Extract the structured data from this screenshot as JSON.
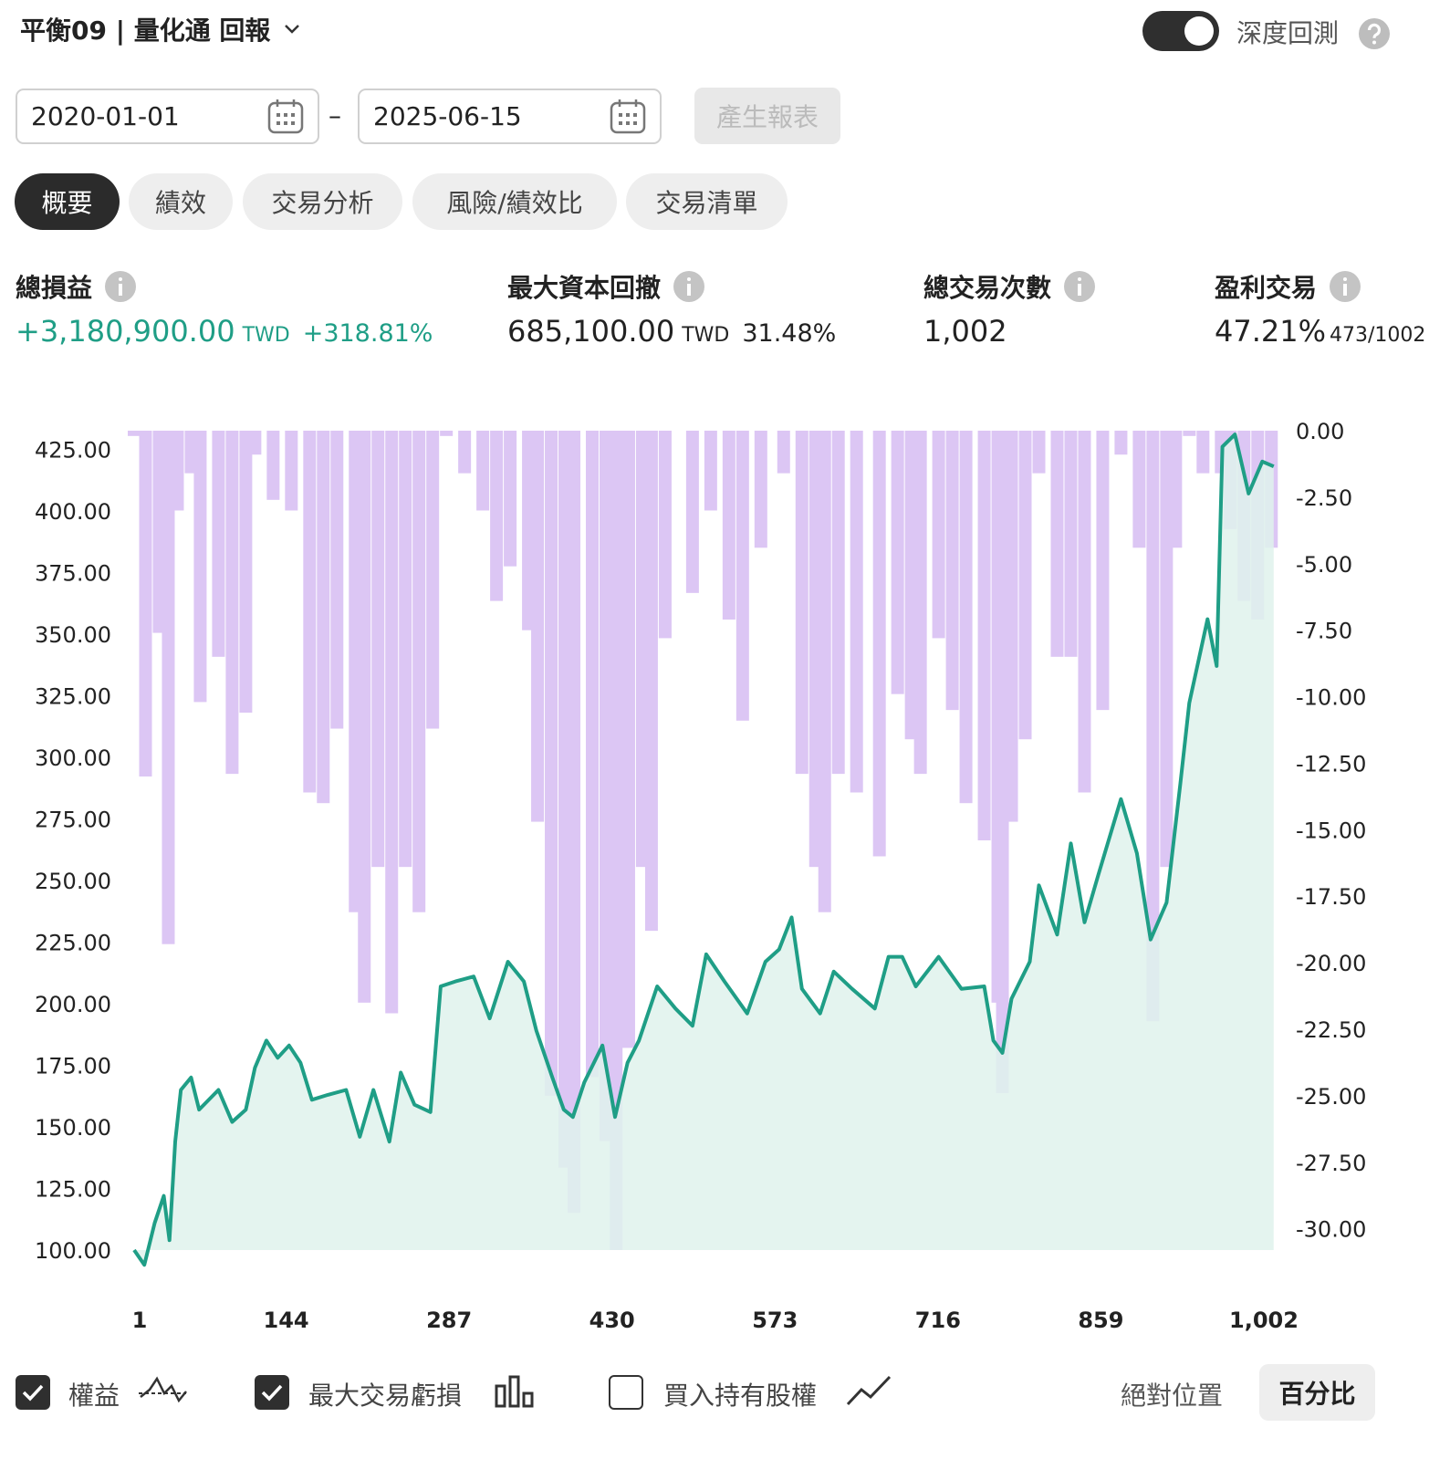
{
  "header": {
    "title": "平衡09 | 量化通 回報",
    "toggle_label": "深度回測"
  },
  "date_range": {
    "start": "2020-01-01",
    "separator": "–",
    "end": "2025-06-15",
    "button": "產生報表"
  },
  "tabs": [
    "概要",
    "績效",
    "交易分析",
    "風險/績效比",
    "交易清單"
  ],
  "stats": [
    {
      "label": "總損益",
      "value": "+3,180,900.00",
      "unit": "TWD",
      "extra": "+318.81%"
    },
    {
      "label": "最大資本回撤",
      "value": "685,100.00",
      "unit": "TWD",
      "extra": "31.48%"
    },
    {
      "label": "總交易次數",
      "value": "1,002"
    },
    {
      "label": "盈利交易",
      "value": "47.21%",
      "extra": "473/1002"
    }
  ],
  "controls": {
    "buy_hold": "買入持有股權",
    "absolute": "絕對位置",
    "percent": "百分比"
  },
  "chart_data": {
    "type": "line",
    "xlim": [
      1,
      1002
    ],
    "xticks": [
      1,
      144,
      287,
      430,
      573,
      716,
      859,
      {
        "value": 1002,
        "label": "1,002"
      }
    ],
    "ylim": [
      100,
      432.5
    ],
    "yticks": [
      {
        "value": 100,
        "label": "100.00"
      },
      {
        "value": 125,
        "label": "125.00"
      },
      {
        "value": 150,
        "label": "150.00"
      },
      {
        "value": 175,
        "label": "175.00"
      },
      {
        "value": 200,
        "label": "200.00"
      },
      {
        "value": 225,
        "label": "225.00"
      },
      {
        "value": 250,
        "label": "250.00"
      },
      {
        "value": 275,
        "label": "275.00"
      },
      {
        "value": 300,
        "label": "300.00"
      },
      {
        "value": 325,
        "label": "325.00"
      },
      {
        "value": 350,
        "label": "350.00"
      },
      {
        "value": 375,
        "label": "375.00"
      },
      {
        "value": 400,
        "label": "400.00"
      },
      {
        "value": 425,
        "label": "425.00"
      }
    ],
    "y2lim": [
      -30.8,
      0
    ],
    "y2ticks": [
      {
        "value": 0,
        "label": "0.00"
      },
      {
        "value": -2.5,
        "label": "-2.50"
      },
      {
        "value": -5,
        "label": "-5.00"
      },
      {
        "value": -7.5,
        "label": "-7.50"
      },
      {
        "value": -10,
        "label": "-10.00"
      },
      {
        "value": -12.5,
        "label": "-12.50"
      },
      {
        "value": -15,
        "label": "-15.00"
      },
      {
        "value": -17.5,
        "label": "-17.50"
      },
      {
        "value": -20,
        "label": "-20.00"
      },
      {
        "value": -22.5,
        "label": "-22.50"
      },
      {
        "value": -25,
        "label": "-25.00"
      },
      {
        "value": -27.5,
        "label": "-27.50"
      },
      {
        "value": -30,
        "label": "-30.00"
      }
    ],
    "series": [
      {
        "name": "最大交易虧損",
        "type": "bar",
        "axis": "y2",
        "color": "#dcc6f4",
        "x": [
          1,
          11,
          23,
          31,
          39,
          51,
          59,
          75,
          87,
          99,
          107,
          123,
          139,
          155,
          167,
          179,
          195,
          203,
          215,
          227,
          239,
          251,
          263,
          275,
          291,
          307,
          319,
          331,
          347,
          355,
          367,
          379,
          387,
          403,
          415,
          424,
          435,
          447,
          455,
          467,
          491,
          507,
          523,
          535,
          551,
          571,
          587,
          599,
          607,
          619,
          635,
          655,
          671,
          683,
          691,
          707,
          719,
          731,
          747,
          759,
          763,
          771,
          783,
          795,
          811,
          823,
          835,
          851,
          867,
          883,
          895,
          907,
          915,
          927,
          939,
          955,
          963,
          975,
          987,
          999
        ],
        "values": [
          -0.2,
          -13,
          -7.6,
          -19.3,
          -3,
          -1.6,
          -10.2,
          -8.5,
          -12.9,
          -10.6,
          -0.9,
          -2.6,
          -3,
          -13.6,
          -14,
          -11.2,
          -18.1,
          -21.5,
          -16.4,
          -21.9,
          -16.4,
          -18.1,
          -11.2,
          -0.2,
          -1.6,
          -3,
          -6.4,
          -5.1,
          -7.5,
          -14.7,
          -25,
          -27.7,
          -29.4,
          -24.3,
          -26.7,
          -30.8,
          -23.2,
          -16.4,
          -18.8,
          -7.8,
          -6.1,
          -3,
          -7.1,
          -10.9,
          -4.4,
          -1.6,
          -12.9,
          -16.4,
          -18.1,
          -12.9,
          -13.6,
          -16,
          -9.9,
          -11.6,
          -12.9,
          -7.8,
          -10.5,
          -14,
          -15.4,
          -21.5,
          -24.9,
          -14.7,
          -11.6,
          -1.6,
          -8.5,
          -8.5,
          -13.6,
          -10.5,
          -0.9,
          -4.4,
          -22.2,
          -16.4,
          -4.4,
          -0.2,
          -1.6,
          -1.6,
          -3.7,
          -6.4,
          -7.1,
          -4.4
        ]
      },
      {
        "name": "權益",
        "type": "line",
        "color": "#1f9e86",
        "fill": "#dff2ec",
        "x": [
          1,
          10,
          19,
          27,
          32,
          37,
          42,
          51,
          58,
          75,
          87,
          99,
          107,
          117,
          127,
          137,
          147,
          157,
          171,
          187,
          199,
          211,
          225,
          235,
          247,
          261,
          270,
          283,
          299,
          313,
          329,
          343,
          354,
          368,
          378,
          386,
          396,
          412,
          423,
          434,
          444,
          460,
          476,
          491,
          503,
          519,
          539,
          555,
          567,
          578,
          587,
          603,
          615,
          631,
          651,
          663,
          675,
          687,
          707,
          727,
          747,
          755,
          763,
          771,
          787,
          795,
          811,
          823,
          835,
          847,
          867,
          881,
          893,
          907,
          919,
          927,
          943,
          951,
          956,
          967,
          979,
          991,
          1001
        ],
        "values": [
          100,
          94,
          111,
          122,
          104,
          144,
          165,
          170,
          157,
          165,
          152,
          157,
          174,
          185,
          178,
          183,
          176,
          161,
          163,
          165,
          146,
          165,
          144,
          172,
          159,
          156,
          207,
          209,
          211,
          194,
          217,
          209,
          189,
          170,
          157,
          154,
          168,
          183,
          154,
          176,
          185,
          207,
          198,
          191,
          220,
          209,
          196,
          217,
          222,
          235,
          206,
          196,
          213,
          206,
          198,
          219,
          219,
          207,
          219,
          206,
          207,
          185,
          180,
          202,
          217,
          248,
          228,
          265,
          233,
          252,
          283,
          261,
          226,
          241,
          289,
          322,
          356,
          337,
          426,
          431,
          407,
          420,
          418
        ]
      }
    ]
  }
}
